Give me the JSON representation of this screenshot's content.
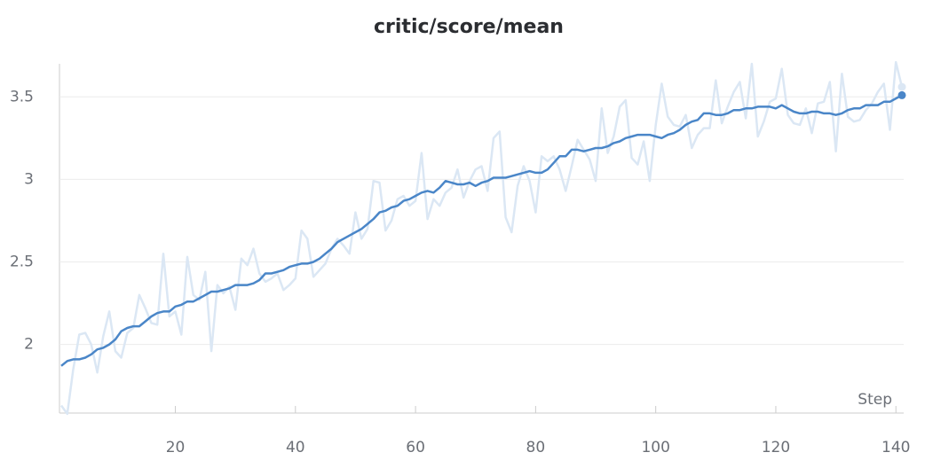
{
  "chart_data": {
    "type": "line",
    "title": "critic/score/mean",
    "xlabel": "Step",
    "x": [
      1,
      2,
      3,
      4,
      5,
      6,
      7,
      8,
      9,
      10,
      11,
      12,
      13,
      14,
      15,
      16,
      17,
      18,
      19,
      20,
      21,
      22,
      23,
      24,
      25,
      26,
      27,
      28,
      29,
      30,
      31,
      32,
      33,
      34,
      35,
      36,
      37,
      38,
      39,
      40,
      41,
      42,
      43,
      44,
      45,
      46,
      47,
      48,
      49,
      50,
      51,
      52,
      53,
      54,
      55,
      56,
      57,
      58,
      59,
      60,
      61,
      62,
      63,
      64,
      65,
      66,
      67,
      68,
      69,
      70,
      71,
      72,
      73,
      74,
      75,
      76,
      77,
      78,
      79,
      80,
      81,
      82,
      83,
      84,
      85,
      86,
      87,
      88,
      89,
      90,
      91,
      92,
      93,
      94,
      95,
      96,
      97,
      98,
      99,
      100,
      101,
      102,
      103,
      104,
      105,
      106,
      107,
      108,
      109,
      110,
      111,
      112,
      113,
      114,
      115,
      116,
      117,
      118,
      119,
      120,
      121,
      122,
      123,
      124,
      125,
      126,
      127,
      128,
      129,
      130,
      131,
      132,
      133,
      134,
      135,
      136,
      137,
      138,
      139,
      140,
      141
    ],
    "series": [
      {
        "color": "#dbe7f4",
        "values": [
          1.63,
          1.58,
          1.85,
          2.06,
          2.07,
          2.0,
          1.83,
          2.05,
          2.2,
          1.96,
          1.92,
          2.07,
          2.1,
          2.3,
          2.22,
          2.13,
          2.12,
          2.55,
          2.17,
          2.2,
          2.06,
          2.53,
          2.3,
          2.27,
          2.44,
          1.96,
          2.36,
          2.31,
          2.35,
          2.21,
          2.52,
          2.48,
          2.58,
          2.43,
          2.38,
          2.4,
          2.43,
          2.33,
          2.36,
          2.4,
          2.69,
          2.64,
          2.41,
          2.45,
          2.49,
          2.58,
          2.64,
          2.6,
          2.55,
          2.8,
          2.64,
          2.7,
          2.99,
          2.98,
          2.69,
          2.75,
          2.88,
          2.9,
          2.84,
          2.87,
          3.16,
          2.76,
          2.88,
          2.84,
          2.92,
          2.95,
          3.06,
          2.89,
          2.99,
          3.06,
          3.08,
          2.93,
          3.25,
          3.29,
          2.77,
          2.68,
          2.96,
          3.08,
          2.99,
          2.8,
          3.14,
          3.11,
          3.14,
          3.06,
          2.93,
          3.08,
          3.24,
          3.18,
          3.12,
          2.99,
          3.43,
          3.16,
          3.26,
          3.44,
          3.48,
          3.13,
          3.09,
          3.23,
          2.99,
          3.33,
          3.58,
          3.38,
          3.33,
          3.32,
          3.39,
          3.19,
          3.27,
          3.31,
          3.31,
          3.6,
          3.34,
          3.44,
          3.53,
          3.59,
          3.37,
          3.7,
          3.26,
          3.35,
          3.47,
          3.49,
          3.67,
          3.39,
          3.34,
          3.33,
          3.43,
          3.28,
          3.46,
          3.47,
          3.59,
          3.17,
          3.64,
          3.38,
          3.35,
          3.36,
          3.42,
          3.46,
          3.53,
          3.58,
          3.3,
          3.71,
          3.56
        ]
      },
      {
        "color": "#4a86c8",
        "values": [
          1.87,
          1.9,
          1.91,
          1.91,
          1.92,
          1.94,
          1.97,
          1.98,
          2.0,
          2.03,
          2.08,
          2.1,
          2.11,
          2.11,
          2.14,
          2.17,
          2.19,
          2.2,
          2.2,
          2.23,
          2.24,
          2.26,
          2.26,
          2.28,
          2.3,
          2.32,
          2.32,
          2.33,
          2.34,
          2.36,
          2.36,
          2.36,
          2.37,
          2.39,
          2.43,
          2.43,
          2.44,
          2.45,
          2.47,
          2.48,
          2.49,
          2.49,
          2.5,
          2.52,
          2.55,
          2.58,
          2.62,
          2.64,
          2.66,
          2.68,
          2.7,
          2.73,
          2.76,
          2.8,
          2.81,
          2.83,
          2.84,
          2.87,
          2.88,
          2.9,
          2.92,
          2.93,
          2.92,
          2.95,
          2.99,
          2.98,
          2.97,
          2.97,
          2.98,
          2.96,
          2.98,
          2.99,
          3.01,
          3.01,
          3.01,
          3.02,
          3.03,
          3.04,
          3.05,
          3.04,
          3.04,
          3.06,
          3.1,
          3.14,
          3.14,
          3.18,
          3.18,
          3.17,
          3.18,
          3.19,
          3.19,
          3.2,
          3.22,
          3.23,
          3.25,
          3.26,
          3.27,
          3.27,
          3.27,
          3.26,
          3.25,
          3.27,
          3.28,
          3.3,
          3.33,
          3.35,
          3.36,
          3.4,
          3.4,
          3.39,
          3.39,
          3.4,
          3.42,
          3.42,
          3.43,
          3.43,
          3.44,
          3.44,
          3.44,
          3.43,
          3.45,
          3.43,
          3.41,
          3.4,
          3.4,
          3.41,
          3.41,
          3.4,
          3.4,
          3.39,
          3.4,
          3.42,
          3.43,
          3.43,
          3.45,
          3.45,
          3.45,
          3.47,
          3.47,
          3.49,
          3.51
        ]
      }
    ],
    "xlim": [
      1,
      141
    ],
    "ylim": [
      1.59,
      3.7
    ],
    "xticks": [
      20,
      40,
      60,
      80,
      100,
      120,
      140
    ],
    "yticks": [
      2,
      2.5,
      3,
      3.5
    ],
    "grid": true
  }
}
